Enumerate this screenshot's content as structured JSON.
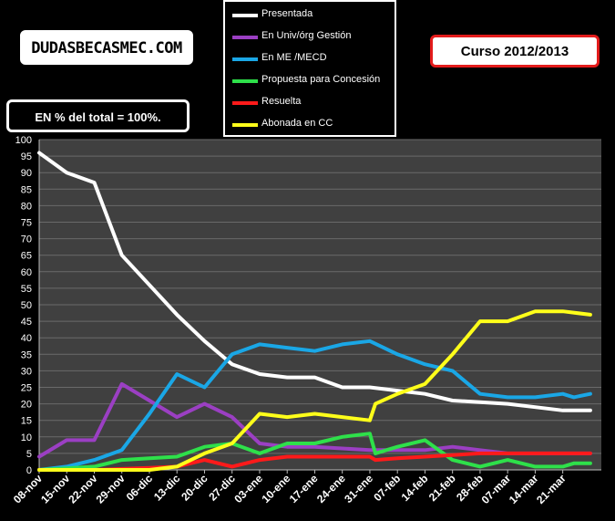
{
  "logo_text": "DUDASBECASMEC.COM",
  "course_label": "Curso 2012/2013",
  "percent_note": "EN % del total = 100%.",
  "chart_data": {
    "type": "line",
    "title": "",
    "xlabel": "",
    "ylabel": "",
    "ylim": [
      0,
      100
    ],
    "yticks": [
      0,
      5,
      10,
      15,
      20,
      25,
      30,
      35,
      40,
      45,
      50,
      55,
      60,
      65,
      70,
      75,
      80,
      85,
      90,
      95,
      100
    ],
    "grid": true,
    "legend_position": "top-center",
    "plot_background": "#404040",
    "x_tick_labels": [
      "08-nov",
      "15-nov",
      "22-nov",
      "29-nov",
      "06-dic",
      "13-dic",
      "20-dic",
      "27-dic",
      "03-ene",
      "10-ene",
      "17-ene",
      "24-ene",
      "31-ene",
      "07-feb",
      "14-feb",
      "21-feb",
      "28-feb",
      "07-mar",
      "14-mar",
      "21-mar"
    ],
    "series": [
      {
        "name": "Presentada",
        "color": "#ffffff",
        "points": [
          [
            0,
            96
          ],
          [
            1,
            90
          ],
          [
            2,
            87
          ],
          [
            3,
            65
          ],
          [
            4,
            56
          ],
          [
            5,
            47
          ],
          [
            6,
            39
          ],
          [
            7,
            32
          ],
          [
            8,
            29
          ],
          [
            9,
            28
          ],
          [
            10,
            28
          ],
          [
            11,
            25
          ],
          [
            12,
            25
          ],
          [
            13,
            24
          ],
          [
            14,
            23
          ],
          [
            15,
            21
          ],
          [
            16,
            20.5
          ],
          [
            17,
            20
          ],
          [
            18,
            19
          ],
          [
            19,
            18
          ],
          [
            20,
            18
          ]
        ]
      },
      {
        "name": "En Univ/órg Gestión",
        "color": "#9b3fc3",
        "points": [
          [
            0,
            4
          ],
          [
            1,
            9
          ],
          [
            2,
            9
          ],
          [
            3,
            26
          ],
          [
            4,
            21
          ],
          [
            5,
            16
          ],
          [
            6,
            20
          ],
          [
            7,
            16
          ],
          [
            8,
            8
          ],
          [
            9,
            7
          ],
          [
            10,
            7
          ],
          [
            11,
            6.5
          ],
          [
            12,
            6
          ],
          [
            13,
            6
          ],
          [
            14,
            6
          ],
          [
            15,
            7
          ],
          [
            16,
            6
          ],
          [
            17,
            5
          ],
          [
            18,
            5
          ],
          [
            19,
            5
          ],
          [
            20,
            5
          ]
        ]
      },
      {
        "name": "En ME /MECD",
        "color": "#1aa7e6",
        "points": [
          [
            0,
            0
          ],
          [
            1,
            1
          ],
          [
            2,
            3
          ],
          [
            3,
            6
          ],
          [
            4,
            17
          ],
          [
            5,
            29
          ],
          [
            6,
            25
          ],
          [
            7,
            35
          ],
          [
            8,
            38
          ],
          [
            9,
            37
          ],
          [
            10,
            36
          ],
          [
            11,
            38
          ],
          [
            12,
            39
          ],
          [
            13,
            35
          ],
          [
            14,
            32
          ],
          [
            15,
            30
          ],
          [
            16,
            23
          ],
          [
            17,
            22
          ],
          [
            18,
            22
          ],
          [
            19,
            23
          ],
          [
            19.4,
            22
          ],
          [
            20,
            23
          ]
        ]
      },
      {
        "name": "Propuesta para  Concesión",
        "color": "#2ee04a",
        "points": [
          [
            0,
            0
          ],
          [
            1,
            0.5
          ],
          [
            2,
            1
          ],
          [
            3,
            3
          ],
          [
            4,
            3.5
          ],
          [
            5,
            4
          ],
          [
            6,
            7
          ],
          [
            7,
            8
          ],
          [
            8,
            5
          ],
          [
            9,
            8
          ],
          [
            10,
            8
          ],
          [
            11,
            10
          ],
          [
            12,
            11
          ],
          [
            12.2,
            5
          ],
          [
            13,
            7
          ],
          [
            14,
            9
          ],
          [
            15,
            3
          ],
          [
            16,
            1
          ],
          [
            17,
            3
          ],
          [
            18,
            1
          ],
          [
            19,
            1
          ],
          [
            19.4,
            2
          ],
          [
            20,
            2
          ]
        ]
      },
      {
        "name": "Resuelta",
        "color": "#ff1a1a",
        "points": [
          [
            0,
            0
          ],
          [
            1,
            0
          ],
          [
            2,
            0
          ],
          [
            3,
            0.3
          ],
          [
            4,
            0.6
          ],
          [
            5,
            1
          ],
          [
            6,
            3
          ],
          [
            7,
            1
          ],
          [
            8,
            3
          ],
          [
            9,
            4
          ],
          [
            10,
            4
          ],
          [
            11,
            4
          ],
          [
            12,
            4
          ],
          [
            12.2,
            3
          ],
          [
            13,
            3.5
          ],
          [
            14,
            4
          ],
          [
            15,
            4.5
          ],
          [
            16,
            5
          ],
          [
            17,
            5
          ],
          [
            18,
            5
          ],
          [
            19,
            5
          ],
          [
            20,
            5
          ]
        ]
      },
      {
        "name": "Abonada en CC",
        "color": "#ffff1a",
        "points": [
          [
            0,
            0
          ],
          [
            1,
            0
          ],
          [
            2,
            0
          ],
          [
            3,
            0
          ],
          [
            4,
            0
          ],
          [
            5,
            1
          ],
          [
            6,
            5
          ],
          [
            7,
            8
          ],
          [
            8,
            17
          ],
          [
            9,
            16
          ],
          [
            10,
            17
          ],
          [
            11,
            16
          ],
          [
            12,
            15
          ],
          [
            12.2,
            20
          ],
          [
            13,
            23
          ],
          [
            14,
            26
          ],
          [
            15,
            35
          ],
          [
            16,
            45
          ],
          [
            17,
            45
          ],
          [
            18,
            48
          ],
          [
            19,
            48
          ],
          [
            20,
            47
          ]
        ]
      }
    ]
  }
}
